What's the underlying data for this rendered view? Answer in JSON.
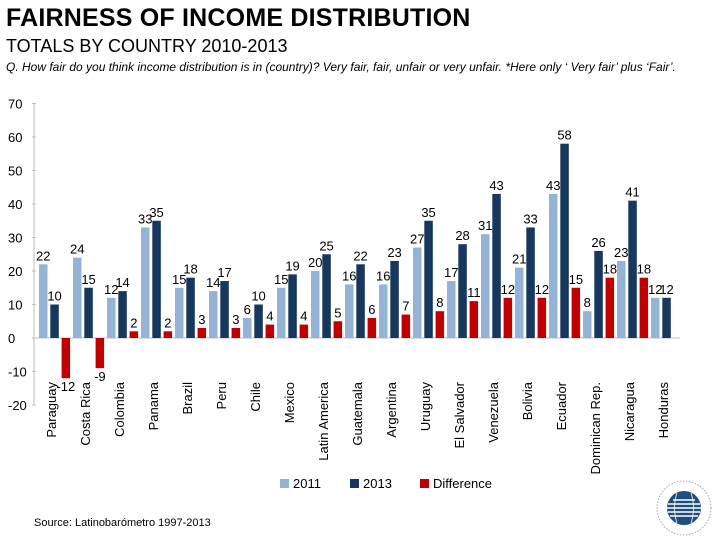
{
  "title": "FAIRNESS OF INCOME DISTRIBUTION",
  "subtitle": "TOTALS BY COUNTRY 2010-2013",
  "question": "Q. How fair do you think income distribution is in (country)? Very fair, fair, unfair or very unfair. *Here only ‘ Very fair’ plus ‘Fair’.",
  "source": "Source: Latinobarómetro 1997-2013",
  "logo": {
    "icon": "latinobarometro-globe-logo"
  },
  "chart_data": {
    "type": "bar",
    "ylim": [
      -20,
      70
    ],
    "yticks": [
      70,
      60,
      50,
      40,
      30,
      20,
      10,
      0,
      -10,
      -20
    ],
    "categories": [
      "Paraguay",
      "Costa Rica",
      "Colombia",
      "Panama",
      "Brazil",
      "Peru",
      "Chile",
      "Mexico",
      "Latin America",
      "Guatemala",
      "Argentina",
      "Uruguay",
      "El Salvador",
      "Venezuela",
      "Bolivia",
      "Ecuador",
      "Dominican Rep.",
      "Nicaragua",
      "Honduras"
    ],
    "series": [
      {
        "name": "2011",
        "color": "#95b3d7",
        "values": [
          22,
          24,
          12,
          33,
          15,
          14,
          6,
          15,
          20,
          16,
          16,
          27,
          17,
          31,
          21,
          43,
          8,
          23,
          12
        ]
      },
      {
        "name": "2013",
        "color": "#17375e",
        "values": [
          10,
          15,
          14,
          35,
          18,
          17,
          10,
          19,
          25,
          22,
          23,
          35,
          28,
          43,
          33,
          58,
          26,
          41,
          12
        ]
      },
      {
        "name": "Difference",
        "color": "#c00000",
        "values": [
          -12,
          -9,
          2,
          2,
          3,
          3,
          4,
          4,
          5,
          6,
          7,
          8,
          11,
          12,
          12,
          15,
          18,
          18,
          null
        ]
      }
    ],
    "legend": "bottom-center"
  }
}
